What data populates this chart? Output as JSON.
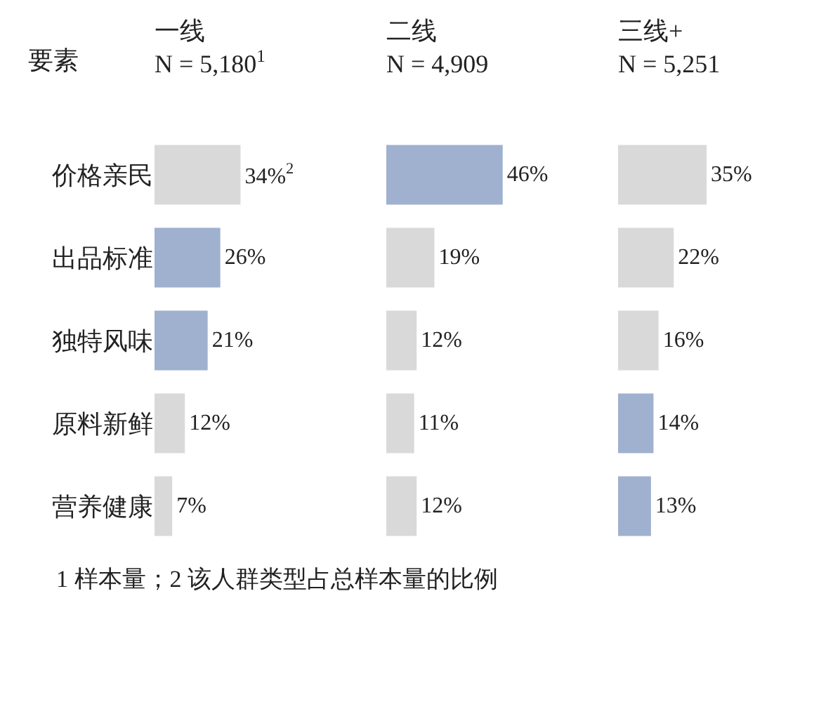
{
  "chart_data": [
    {
      "type": "bar",
      "orientation": "horizontal",
      "title": "一线",
      "subtitle": "N = 5,180$^{1}$",
      "ylabel": "要素",
      "categories": [
        "价格亲民",
        "出品标准",
        "独特风味",
        "原料新鲜",
        "营养健康"
      ],
      "values": [
        34,
        26,
        21,
        12,
        7
      ],
      "colors": [
        "#d9d9d9",
        "#9fb1cf",
        "#9fb1cf",
        "#d9d9d9",
        "#d9d9d9"
      ],
      "value_labels": [
        "34%$^{2}$",
        "26%",
        "21%",
        "12%",
        "7%"
      ],
      "tick_labels": "y",
      "annotations": [
        "1 样本量；2 该人群类型占总样本量的比例"
      ]
    },
    {
      "type": "bar",
      "orientation": "horizontal",
      "title": "二线",
      "subtitle": "N = 4,909",
      "values": [
        46,
        19,
        12,
        11,
        12
      ],
      "colors": [
        "#9fb1cf",
        "#d9d9d9",
        "#d9d9d9",
        "#d9d9d9",
        "#d9d9d9"
      ],
      "value_labels": [
        "46%",
        "19%",
        "12%",
        "11%",
        "12%"
      ],
      "tick_labels": false
    },
    {
      "type": "bar",
      "orientation": "horizontal",
      "title": "三线+",
      "subtitle": "N = 5,251",
      "values": [
        35,
        22,
        16,
        14,
        13
      ],
      "colors": [
        "#d9d9d9",
        "#d9d9d9",
        "#d9d9d9",
        "#9fb1cf",
        "#9fb1cf"
      ],
      "value_labels": [
        "35%",
        "22%",
        "16%",
        "14%",
        "13%"
      ],
      "tick_labels": false
    }
  ]
}
